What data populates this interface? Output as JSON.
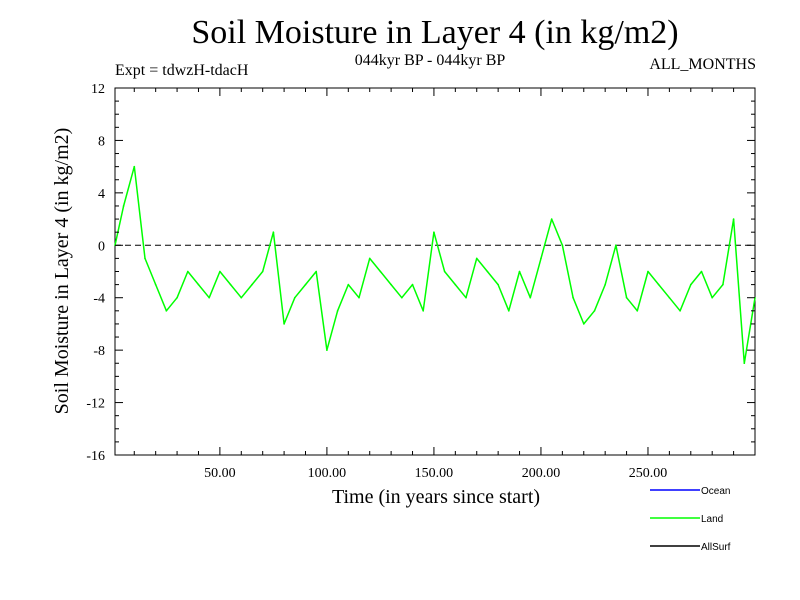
{
  "chart_data": {
    "type": "line",
    "title": "Soil Moisture in Layer 4 (in kg/m2)",
    "subtitle": "044kyr BP - 044kyr BP",
    "experiment_label": "Expt = tdwzH-tdacH",
    "period_label": "ALL_MONTHS",
    "xlabel": "Time (in years since start)",
    "ylabel": "Soil Moisture in Layer 4 (in kg/m2)",
    "xlim": [
      1,
      300
    ],
    "ylim": [
      -16,
      12
    ],
    "xticks": [
      "50.00",
      "100.00",
      "150.00",
      "200.00",
      "250.00"
    ],
    "xtick_values": [
      50,
      100,
      150,
      200,
      250
    ],
    "yticks": [
      "12",
      "8",
      "4",
      "0",
      "-4",
      "-8",
      "-12",
      "-16"
    ],
    "ytick_values": [
      12,
      8,
      4,
      0,
      -4,
      -8,
      -12,
      -16
    ],
    "reference_line": {
      "y": 0,
      "style": "dashed"
    },
    "grid": false,
    "legend_position": "bottom-right",
    "legend": [
      {
        "name": "Ocean",
        "color": "#0000ff"
      },
      {
        "name": "Land",
        "color": "#00ff00"
      },
      {
        "name": "AllSurf",
        "color": "#000000"
      }
    ],
    "series": [
      {
        "name": "Land",
        "color": "#00ff00",
        "x": [
          1,
          5,
          10,
          15,
          20,
          25,
          30,
          35,
          40,
          45,
          50,
          55,
          60,
          65,
          70,
          75,
          80,
          85,
          90,
          95,
          100,
          105,
          110,
          115,
          120,
          125,
          130,
          135,
          140,
          145,
          150,
          155,
          160,
          165,
          170,
          175,
          180,
          185,
          190,
          195,
          200,
          205,
          210,
          215,
          220,
          225,
          230,
          235,
          240,
          245,
          250,
          255,
          260,
          265,
          270,
          275,
          280,
          285,
          290,
          295,
          300
        ],
        "y": [
          0,
          3,
          6,
          -1,
          -3,
          -5,
          -4,
          -2,
          -3,
          -4,
          -2,
          -3,
          -4,
          -3,
          -2,
          1,
          -6,
          -4,
          -3,
          -2,
          -8,
          -5,
          -3,
          -4,
          -1,
          -2,
          -3,
          -4,
          -3,
          -5,
          1,
          -2,
          -3,
          -4,
          -1,
          -2,
          -3,
          -5,
          -2,
          -4,
          -1,
          2,
          0,
          -4,
          -6,
          -5,
          -3,
          0,
          -4,
          -5,
          -2,
          -3,
          -4,
          -5,
          -3,
          -2,
          -4,
          -3,
          2,
          -9,
          -4
        ]
      }
    ]
  }
}
